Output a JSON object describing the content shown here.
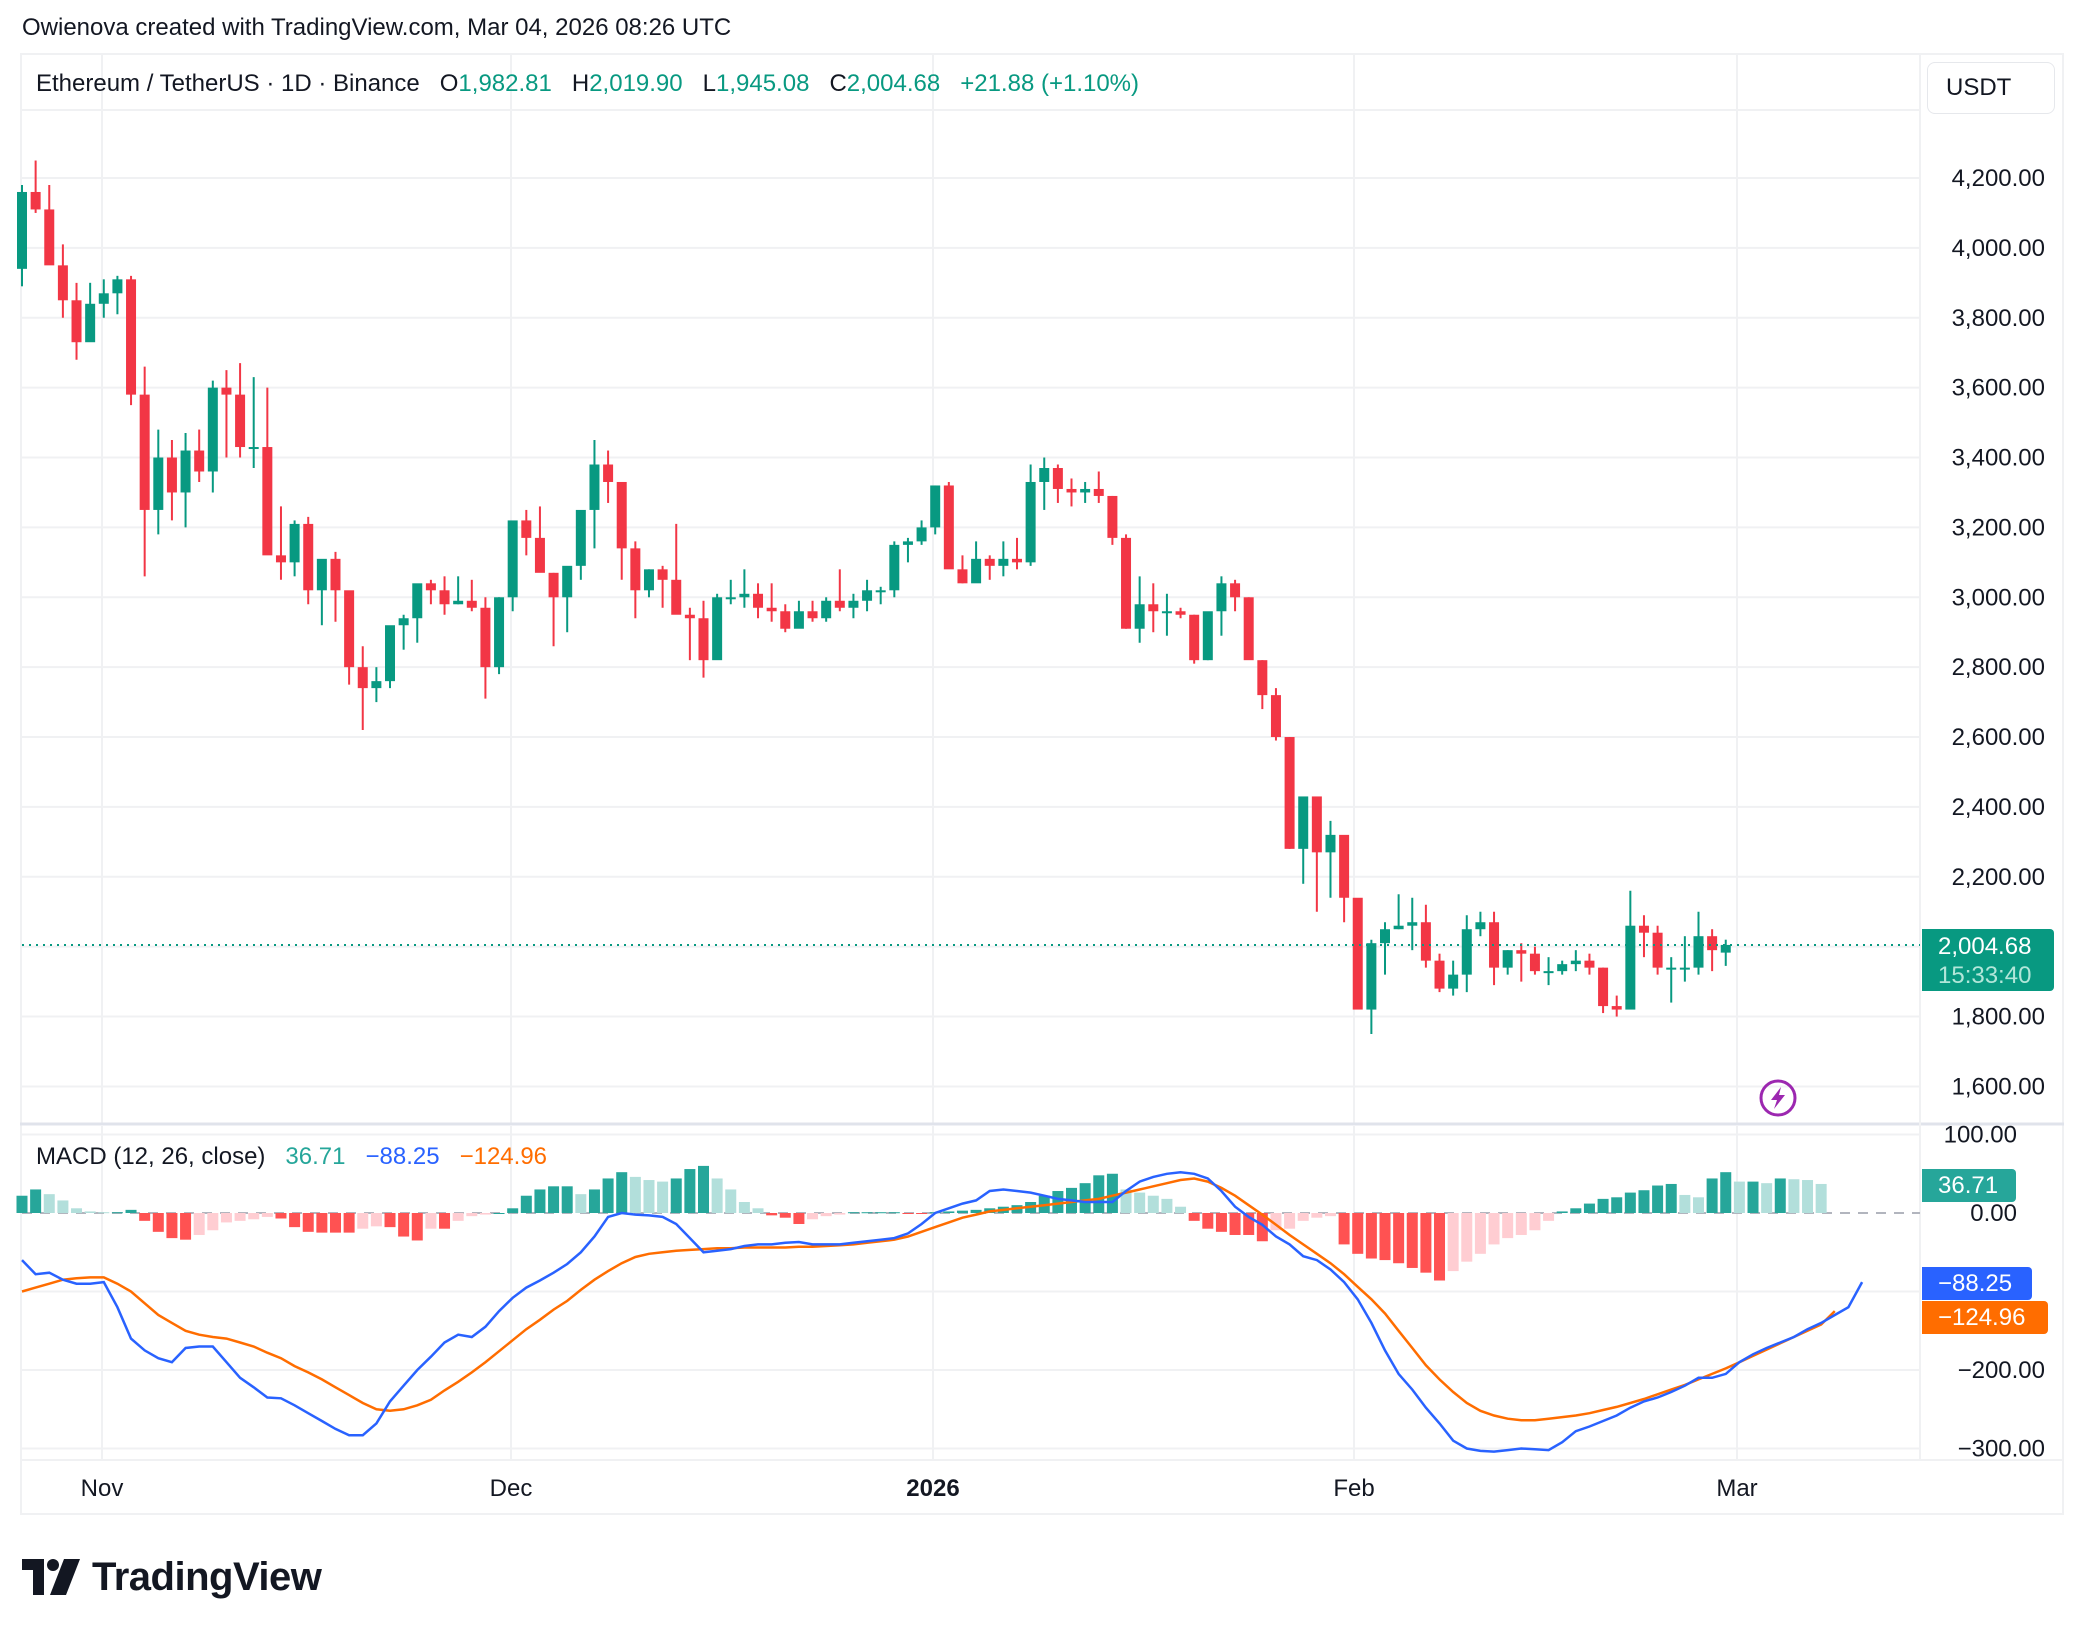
{
  "credit": "Owienova created with TradingView.com, Mar 04, 2026 08:26 UTC",
  "header": {
    "symbol": "Ethereum / TetherUS · 1D · Binance",
    "o_label": "O",
    "o_value": "1,982.81",
    "h_label": "H",
    "h_value": "2,019.90",
    "l_label": "L",
    "l_value": "1,945.08",
    "c_label": "C",
    "c_value": "2,004.68",
    "change": "+21.88 (+1.10%)"
  },
  "currency_button": "USDT",
  "price_tag": {
    "price": "2,004.68",
    "countdown": "15:33:40"
  },
  "macd": {
    "title": "MACD (12, 26, close)",
    "histogram": "36.71",
    "macd": "−88.25",
    "signal": "−124.96",
    "hist_tag": "36.71",
    "macd_tag": "−88.25",
    "signal_tag": "−124.96"
  },
  "price_axis_labels": [
    "4,200.00",
    "4,000.00",
    "3,800.00",
    "3,600.00",
    "3,400.00",
    "3,200.00",
    "3,000.00",
    "2,800.00",
    "2,600.00",
    "2,400.00",
    "2,200.00",
    "1,800.00",
    "1,600.00"
  ],
  "macd_axis_labels": [
    "100.00",
    "0.00",
    "−200.00",
    "−300.00"
  ],
  "time_axis": [
    {
      "label": "Nov",
      "bold": false
    },
    {
      "label": "Dec",
      "bold": false
    },
    {
      "label": "2026",
      "bold": true
    },
    {
      "label": "Feb",
      "bold": false
    },
    {
      "label": "Mar",
      "bold": false
    }
  ],
  "logo_text": "TradingView",
  "colors": {
    "up": "#089981",
    "down": "#f23645",
    "hist_up_strong": "#26a69a",
    "hist_up_weak": "#b2dfdb",
    "hist_down_strong": "#ff5252",
    "hist_down_weak": "#ffcdd2",
    "macd_line": "#2962ff",
    "signal_line": "#ff6d00",
    "grid": "#f0f1f3"
  },
  "chart_data": {
    "type": "candlestick",
    "title": "Ethereum / TetherUS · 1D · Binance",
    "xlabel": "",
    "ylabel": "USDT",
    "ylim": [
      1550,
      4300
    ],
    "x_ticks": [
      "Nov",
      "Dec",
      "2026",
      "Feb",
      "Mar"
    ],
    "y_ticks": [
      1600,
      1800,
      2000,
      2200,
      2400,
      2600,
      2800,
      3000,
      3200,
      3400,
      3600,
      3800,
      4000,
      4200
    ],
    "grid": true,
    "last_price": 2004.68,
    "start_date": "2025-10-26",
    "ohlc": [
      [
        3940,
        4180,
        3890,
        4160
      ],
      [
        4160,
        4250,
        4100,
        4110
      ],
      [
        4110,
        4180,
        3980,
        3950
      ],
      [
        3950,
        4010,
        3800,
        3850
      ],
      [
        3850,
        3900,
        3680,
        3730
      ],
      [
        3730,
        3900,
        3740,
        3840
      ],
      [
        3840,
        3910,
        3800,
        3870
      ],
      [
        3870,
        3920,
        3810,
        3910
      ],
      [
        3910,
        3920,
        3550,
        3580
      ],
      [
        3580,
        3660,
        3060,
        3250
      ],
      [
        3250,
        3480,
        3180,
        3400
      ],
      [
        3400,
        3450,
        3220,
        3300
      ],
      [
        3300,
        3470,
        3200,
        3420
      ],
      [
        3420,
        3480,
        3330,
        3360
      ],
      [
        3360,
        3620,
        3300,
        3600
      ],
      [
        3600,
        3650,
        3400,
        3580
      ],
      [
        3580,
        3670,
        3400,
        3430
      ],
      [
        3430,
        3630,
        3370,
        3430
      ],
      [
        3430,
        3600,
        3150,
        3120
      ],
      [
        3120,
        3260,
        3050,
        3100
      ],
      [
        3100,
        3220,
        3060,
        3210
      ],
      [
        3210,
        3230,
        2980,
        3020
      ],
      [
        3020,
        3100,
        2920,
        3110
      ],
      [
        3110,
        3130,
        2930,
        3020
      ],
      [
        3020,
        3000,
        2750,
        2800
      ],
      [
        2800,
        2860,
        2620,
        2740
      ],
      [
        2740,
        2800,
        2700,
        2760
      ],
      [
        2760,
        2830,
        2740,
        2920
      ],
      [
        2920,
        2950,
        2850,
        2940
      ],
      [
        2940,
        3030,
        2870,
        3040
      ],
      [
        3040,
        3050,
        2980,
        3020
      ],
      [
        3020,
        3060,
        2950,
        2980
      ],
      [
        2980,
        3060,
        2980,
        2990
      ],
      [
        2990,
        3050,
        2960,
        2970
      ],
      [
        2970,
        3000,
        2710,
        2800
      ],
      [
        2800,
        3000,
        2780,
        3000
      ],
      [
        3000,
        3150,
        2960,
        3220
      ],
      [
        3220,
        3250,
        3120,
        3170
      ],
      [
        3170,
        3260,
        3080,
        3070
      ],
      [
        3070,
        3070,
        2860,
        3000
      ],
      [
        3000,
        3070,
        2900,
        3090
      ],
      [
        3090,
        3150,
        3050,
        3250
      ],
      [
        3250,
        3450,
        3140,
        3380
      ],
      [
        3380,
        3420,
        3270,
        3330
      ],
      [
        3330,
        3300,
        3050,
        3140
      ],
      [
        3140,
        3160,
        2940,
        3020
      ],
      [
        3020,
        3080,
        3000,
        3080
      ],
      [
        3080,
        3090,
        2970,
        3050
      ],
      [
        3050,
        3210,
        2960,
        2950
      ],
      [
        2950,
        2970,
        2820,
        2940
      ],
      [
        2940,
        2990,
        2770,
        2820
      ],
      [
        2820,
        3010,
        2830,
        3000
      ],
      [
        3000,
        3050,
        2980,
        3000
      ],
      [
        3000,
        3080,
        2970,
        3010
      ],
      [
        3010,
        3040,
        2940,
        2970
      ],
      [
        2970,
        3040,
        2930,
        2960
      ],
      [
        2960,
        2980,
        2900,
        2910
      ],
      [
        2910,
        2990,
        2920,
        2960
      ],
      [
        2960,
        2990,
        2930,
        2940
      ],
      [
        2940,
        3000,
        2930,
        2990
      ],
      [
        2990,
        3080,
        2960,
        2970
      ],
      [
        2970,
        3010,
        2940,
        2990
      ],
      [
        2990,
        3050,
        2960,
        3020
      ],
      [
        3020,
        3030,
        2980,
        3020
      ],
      [
        3020,
        3160,
        3000,
        3150
      ],
      [
        3150,
        3170,
        3100,
        3160
      ],
      [
        3160,
        3220,
        3150,
        3200
      ],
      [
        3200,
        3320,
        3180,
        3320
      ],
      [
        3320,
        3330,
        3100,
        3080
      ],
      [
        3080,
        3120,
        3040,
        3040
      ],
      [
        3040,
        3160,
        3070,
        3110
      ],
      [
        3110,
        3120,
        3050,
        3090
      ],
      [
        3090,
        3160,
        3060,
        3110
      ],
      [
        3110,
        3170,
        3080,
        3100
      ],
      [
        3100,
        3380,
        3090,
        3330
      ],
      [
        3330,
        3400,
        3250,
        3370
      ],
      [
        3370,
        3380,
        3270,
        3310
      ],
      [
        3310,
        3340,
        3260,
        3300
      ],
      [
        3300,
        3330,
        3270,
        3310
      ],
      [
        3310,
        3360,
        3270,
        3290
      ],
      [
        3290,
        3290,
        3150,
        3170
      ],
      [
        3170,
        3180,
        2910,
        2910
      ],
      [
        2910,
        3060,
        2870,
        2980
      ],
      [
        2980,
        3040,
        2900,
        2960
      ],
      [
        2960,
        3010,
        2890,
        2960
      ],
      [
        2960,
        2970,
        2940,
        2950
      ],
      [
        2950,
        2950,
        2810,
        2820
      ],
      [
        2820,
        2950,
        2820,
        2960
      ],
      [
        2960,
        3060,
        2890,
        3040
      ],
      [
        3040,
        3050,
        2960,
        3000
      ],
      [
        3000,
        3000,
        2860,
        2820
      ],
      [
        2820,
        2820,
        2680,
        2720
      ],
      [
        2720,
        2740,
        2590,
        2600
      ],
      [
        2600,
        2600,
        2280,
        2280
      ],
      [
        2280,
        2360,
        2180,
        2430
      ],
      [
        2430,
        2400,
        2100,
        2270
      ],
      [
        2270,
        2360,
        2140,
        2320
      ],
      [
        2320,
        2300,
        2070,
        2140
      ],
      [
        2140,
        2110,
        1830,
        1820
      ],
      [
        1820,
        2020,
        1750,
        2010
      ],
      [
        2010,
        2070,
        1920,
        2050
      ],
      [
        2050,
        2150,
        2050,
        2060
      ],
      [
        2060,
        2140,
        1990,
        2070
      ],
      [
        2070,
        2120,
        1940,
        1960
      ],
      [
        1960,
        1980,
        1870,
        1880
      ],
      [
        1880,
        1960,
        1860,
        1920
      ],
      [
        1920,
        2090,
        1870,
        2050
      ],
      [
        2050,
        2100,
        2030,
        2070
      ],
      [
        2070,
        2100,
        1890,
        1940
      ],
      [
        1940,
        1990,
        1920,
        1990
      ],
      [
        1990,
        2010,
        1900,
        1980
      ],
      [
        1980,
        2000,
        1920,
        1930
      ],
      [
        1930,
        1970,
        1890,
        1930
      ],
      [
        1930,
        1960,
        1920,
        1950
      ],
      [
        1950,
        1990,
        1930,
        1960
      ],
      [
        1960,
        1980,
        1920,
        1940
      ],
      [
        1940,
        1940,
        1810,
        1830
      ],
      [
        1830,
        1860,
        1800,
        1820
      ],
      [
        1820,
        2160,
        1830,
        2060
      ],
      [
        2060,
        2090,
        1970,
        2040
      ],
      [
        2040,
        2060,
        1920,
        1940
      ],
      [
        1940,
        1970,
        1840,
        1940
      ],
      [
        1940,
        2030,
        1900,
        1940
      ],
      [
        1940,
        2100,
        1920,
        2030
      ],
      [
        2030,
        2050,
        1930,
        1990
      ],
      [
        1983,
        2020,
        1945,
        2005
      ]
    ],
    "macd_series": {
      "histogram": [
        22,
        30,
        24,
        16,
        6,
        2,
        1,
        1,
        4,
        -10,
        -24,
        -32,
        -34,
        -28,
        -22,
        -12,
        -10,
        -8,
        -5,
        -7,
        -18,
        -24,
        -25,
        -25,
        -25,
        -20,
        -17,
        -18,
        -30,
        -35,
        -20,
        -20,
        -10,
        -4,
        -2,
        0,
        6,
        22,
        30,
        34,
        34,
        24,
        30,
        44,
        52,
        46,
        42,
        40,
        44,
        56,
        60,
        44,
        30,
        14,
        6,
        -3,
        -6,
        -14,
        -8,
        -4,
        -2,
        1,
        1,
        1,
        1,
        -1,
        -1,
        1,
        2,
        3,
        4,
        6,
        8,
        10,
        14,
        22,
        28,
        32,
        38,
        48,
        50,
        30,
        26,
        22,
        18,
        8,
        -10,
        -20,
        -24,
        -28,
        -28,
        -36,
        -22,
        -20,
        -10,
        -6,
        -4,
        -40,
        -52,
        -58,
        -60,
        -64,
        -70,
        -76,
        -86,
        -74,
        -62,
        -52,
        -40,
        -32,
        -28,
        -22,
        -10,
        2,
        6,
        12,
        18,
        20,
        26,
        29,
        35,
        37,
        23,
        20,
        44,
        52,
        40,
        40,
        38,
        44,
        43,
        42,
        37
      ],
      "macd": [
        -60,
        -78,
        -76,
        -85,
        -90,
        -90,
        -88,
        -120,
        -160,
        -175,
        -185,
        -190,
        -172,
        -170,
        -170,
        -190,
        -210,
        -222,
        -235,
        -236,
        -245,
        -255,
        -265,
        -275,
        -283,
        -283,
        -268,
        -240,
        -220,
        -200,
        -183,
        -165,
        -155,
        -158,
        -145,
        -125,
        -108,
        -95,
        -86,
        -76,
        -65,
        -50,
        -30,
        -5,
        0,
        -2,
        -3,
        -5,
        -14,
        -32,
        -50,
        -48,
        -46,
        -42,
        -40,
        -40,
        -38,
        -37,
        -40,
        -40,
        -40,
        -38,
        -36,
        -34,
        -32,
        -26,
        -14,
        0,
        6,
        12,
        16,
        28,
        30,
        28,
        26,
        22,
        18,
        16,
        14,
        14,
        14,
        28,
        40,
        46,
        50,
        52,
        50,
        44,
        28,
        8,
        -5,
        -15,
        -30,
        -40,
        -55,
        -60,
        -72,
        -88,
        -110,
        -140,
        -175,
        -205,
        -225,
        -248,
        -268,
        -290,
        -300,
        -303,
        -304,
        -302,
        -300,
        -301,
        -302,
        -292,
        -278,
        -272,
        -265,
        -258,
        -248,
        -240,
        -235,
        -228,
        -220,
        -210,
        -210,
        -205,
        -190,
        -180,
        -172,
        -165,
        -158,
        -148,
        -140,
        -130,
        -120,
        -88
      ],
      "signal": [
        -100,
        -95,
        -90,
        -85,
        -83,
        -82,
        -82,
        -90,
        -100,
        -115,
        -130,
        -140,
        -150,
        -155,
        -158,
        -160,
        -165,
        -170,
        -178,
        -185,
        -195,
        -203,
        -212,
        -222,
        -232,
        -242,
        -250,
        -252,
        -250,
        -245,
        -238,
        -226,
        -215,
        -203,
        -190,
        -176,
        -162,
        -148,
        -136,
        -123,
        -112,
        -98,
        -85,
        -74,
        -64,
        -56,
        -52,
        -50,
        -48,
        -47,
        -46,
        -45,
        -45,
        -44,
        -44,
        -44,
        -44,
        -43,
        -43,
        -42,
        -41,
        -40,
        -38,
        -36,
        -34,
        -30,
        -24,
        -18,
        -12,
        -6,
        -2,
        2,
        4,
        6,
        8,
        10,
        12,
        14,
        16,
        18,
        22,
        26,
        30,
        34,
        38,
        42,
        44,
        40,
        32,
        22,
        10,
        -2,
        -15,
        -28,
        -40,
        -52,
        -64,
        -78,
        -94,
        -110,
        -128,
        -150,
        -172,
        -194,
        -212,
        -228,
        -242,
        -252,
        -258,
        -262,
        -264,
        -264,
        -262,
        -260,
        -258,
        -255,
        -251,
        -247,
        -242,
        -237,
        -231,
        -225,
        -219,
        -212,
        -205,
        -198,
        -190,
        -182,
        -174,
        -166,
        -158,
        -150,
        -142,
        -125
      ]
    }
  }
}
